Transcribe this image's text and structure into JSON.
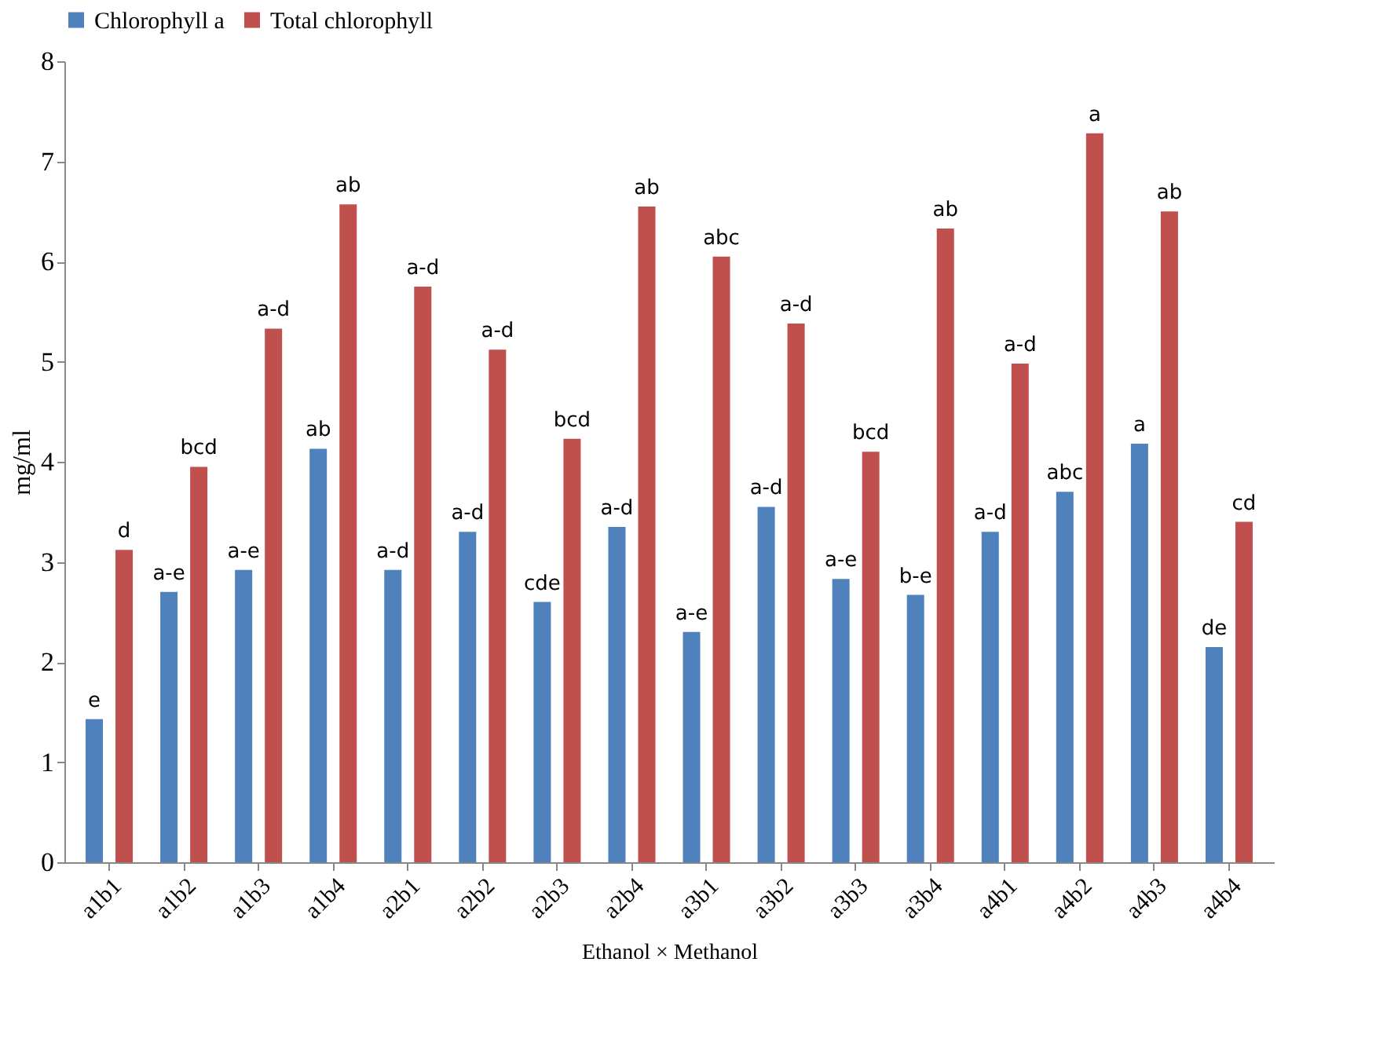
{
  "chart_data": {
    "type": "bar",
    "xlabel": "Ethanol × Methanol",
    "ylabel": "mg/ml",
    "categories": [
      "a1b1",
      "a1b2",
      "a1b3",
      "a1b4",
      "a2b1",
      "a2b2",
      "a2b3",
      "a2b4",
      "a3b1",
      "a3b2",
      "a3b3",
      "a3b4",
      "a4b1",
      "a4b2",
      "a4b3",
      "a4b4"
    ],
    "series": [
      {
        "name": "Chlorophyll a",
        "color": "#4f81bd",
        "values": [
          1.43,
          2.7,
          2.92,
          4.13,
          2.92,
          3.3,
          2.6,
          3.35,
          2.3,
          3.55,
          2.83,
          2.67,
          3.3,
          3.7,
          4.18,
          2.15
        ],
        "value_labels": [
          "e",
          "a-e",
          "a-e",
          "ab",
          "a-d",
          "a-d",
          "cde",
          "a-d",
          "a-e",
          "a-d",
          "a-e",
          "b-e",
          "a-d",
          "abc",
          "a",
          "de"
        ]
      },
      {
        "name": "Total chlorophyll",
        "color": "#c0504d",
        "values": [
          3.12,
          3.95,
          5.33,
          6.57,
          5.75,
          5.12,
          4.23,
          6.55,
          6.05,
          5.38,
          4.1,
          6.33,
          4.98,
          7.28,
          6.5,
          3.4
        ],
        "value_labels": [
          "d",
          "bcd",
          "a-d",
          "ab",
          "a-d",
          "a-d",
          "bcd",
          "ab",
          "abc",
          "a-d",
          "bcd",
          "ab",
          "a-d",
          "a",
          "ab",
          "cd"
        ]
      }
    ],
    "ylim": [
      0,
      8
    ],
    "yticks": [
      0,
      1,
      2,
      3,
      4,
      5,
      6,
      7,
      8
    ],
    "grid": false,
    "legend": "top"
  }
}
